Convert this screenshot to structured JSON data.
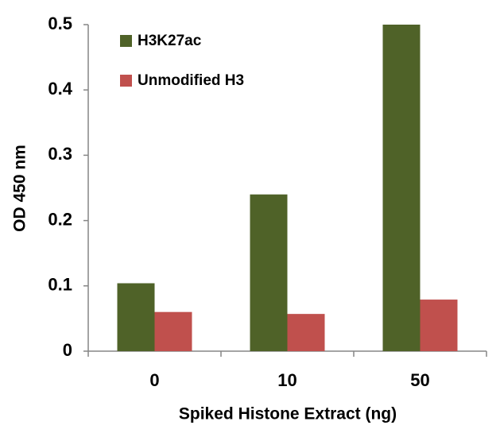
{
  "chart_data": {
    "type": "bar",
    "x_label": "Spiked Histone Extract (ng)",
    "y_label": "OD 450 nm",
    "categories": [
      "0",
      "10",
      "50"
    ],
    "series": [
      {
        "name": "H3K27ac",
        "color": "#4f6228",
        "values": [
          0.104,
          0.24,
          0.5
        ]
      },
      {
        "name": "Unmodified H3",
        "color": "#c0504d",
        "values": [
          0.06,
          0.057,
          0.079
        ]
      }
    ],
    "ylim": [
      0,
      0.5
    ],
    "yticks": [
      0,
      0.1,
      0.2,
      0.3,
      0.4,
      0.5
    ],
    "grid": false,
    "legend": "upper left"
  }
}
